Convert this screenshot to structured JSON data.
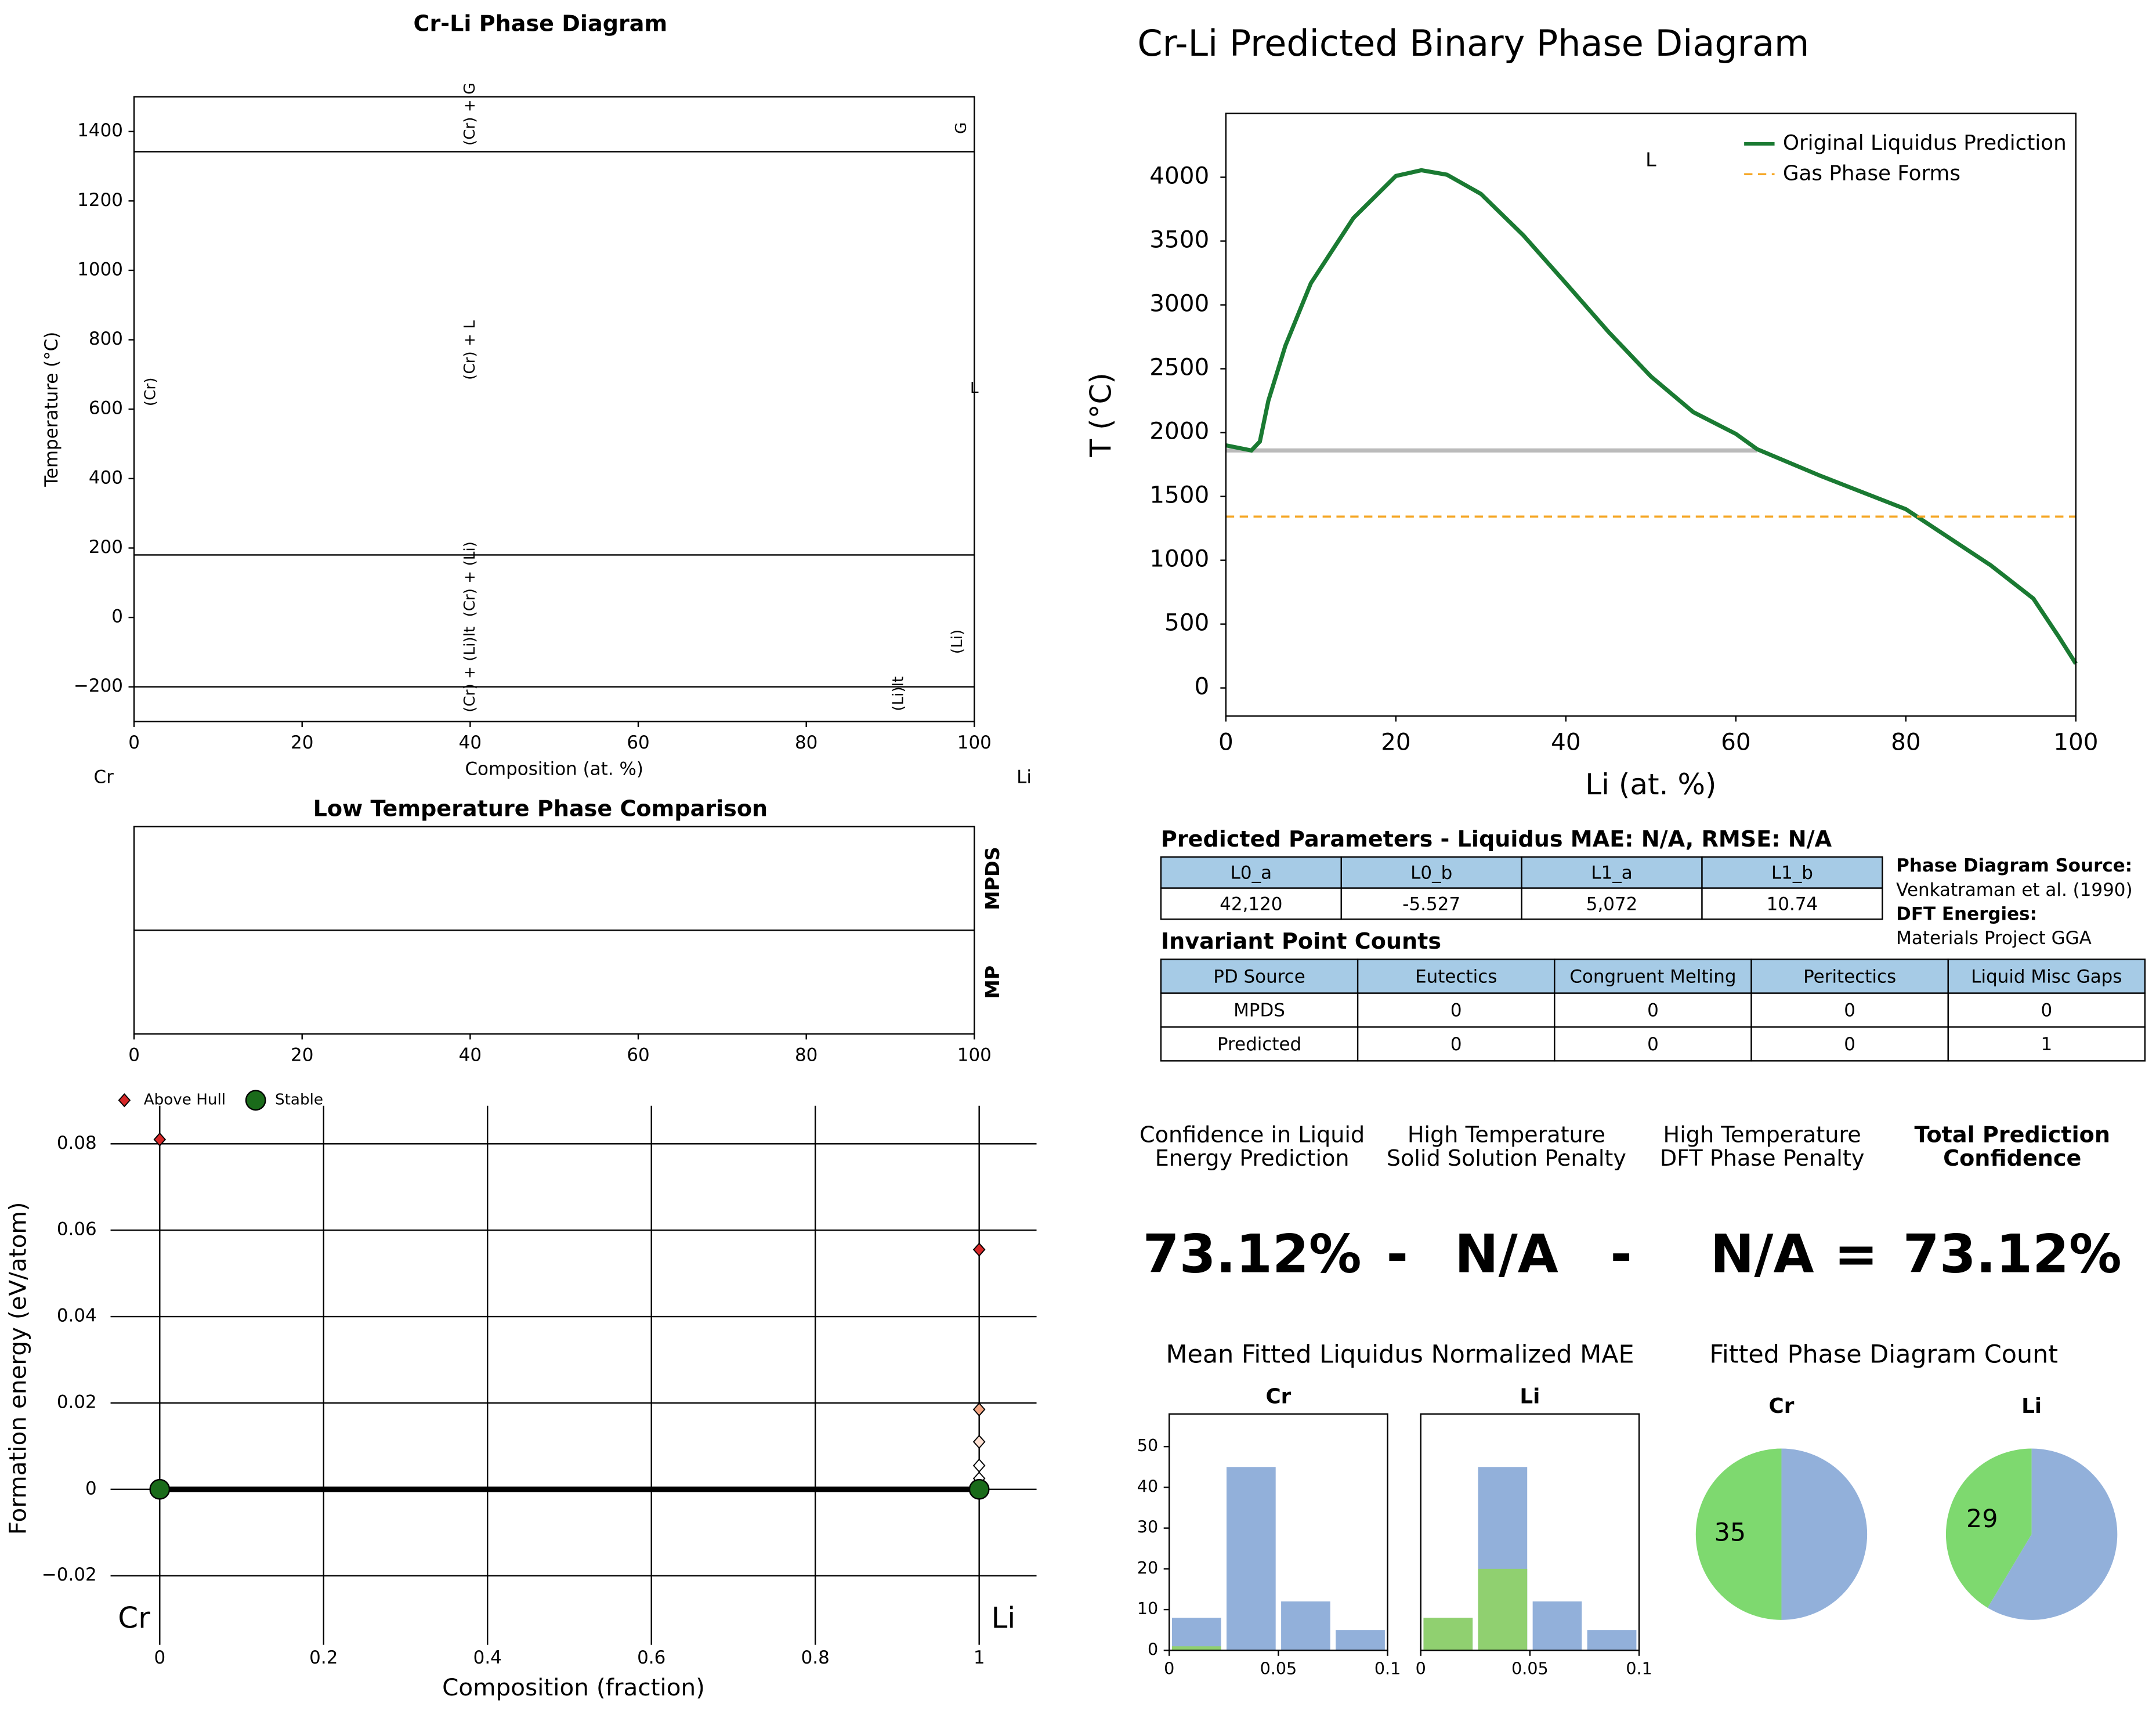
{
  "chart_data": [
    {
      "type": "phase",
      "title": "Cr-Li Phase Diagram",
      "xlabel": "Composition (at. %)",
      "ylabel": "Temperature (°C)",
      "xlim": [
        0,
        100
      ],
      "ylim": [
        -300,
        1500
      ],
      "xticks": [
        0,
        20,
        40,
        60,
        80,
        100
      ],
      "yticks": [
        {
          "value": -200,
          "label": "−200"
        },
        0,
        200,
        400,
        600,
        800,
        1000,
        1200,
        1400
      ],
      "boundaries": [
        1342,
        180,
        -200
      ],
      "regions": [
        {
          "text": "(Cr) + G",
          "x": 40,
          "y": 1450,
          "rotation": 90
        },
        {
          "text": "G",
          "x": 98.5,
          "y": 1410,
          "rotation": 90
        },
        {
          "text": "(Cr) + L",
          "x": 40,
          "y": 770,
          "rotation": 90
        },
        {
          "text": "(Cr)",
          "x": 2,
          "y": 650,
          "rotation": 90
        },
        {
          "text": "L",
          "x": 100,
          "y": 660,
          "rotation": 0
        },
        {
          "text": "(Cr) + (Li)",
          "x": 40,
          "y": 110,
          "rotation": 90
        },
        {
          "text": "(Li)",
          "x": 98,
          "y": -70,
          "rotation": 90
        },
        {
          "text": "(Cr) + (Li)lt",
          "x": 40,
          "y": -150,
          "rotation": 90
        },
        {
          "text": "(Li)lt",
          "x": 91,
          "y": -220,
          "rotation": 90
        }
      ],
      "end_labels": [
        "Cr",
        "Li"
      ]
    },
    {
      "type": "band",
      "title": "Low Temperature Phase Comparison",
      "rows": [
        "MPDS",
        "MP"
      ],
      "xlim": [
        0,
        100
      ],
      "xticks": [
        0,
        20,
        40,
        60,
        80,
        100
      ]
    },
    {
      "type": "scatter",
      "xlabel": "Composition (fraction)",
      "ylabel": "Formation energy (eV/atom)",
      "xlim": [
        -0.06,
        1.07
      ],
      "ylim": [
        -0.036,
        0.092
      ],
      "xticks": [
        0,
        0.2,
        0.4,
        0.6,
        0.8,
        1
      ],
      "yticks": [
        {
          "value": -0.02,
          "label": "−0.02"
        },
        0,
        0.02,
        0.04,
        0.06,
        0.08
      ],
      "grid": true,
      "legend": "upper left",
      "series": [
        {
          "name": "Above Hull",
          "color": "#d62728",
          "marker": "diamond",
          "x": [
            0,
            1,
            1,
            1,
            1,
            1
          ],
          "values": [
            0.081,
            0.0555,
            0.0185,
            0.011,
            0.0055,
            0.0025
          ],
          "colors": [
            "#d62728",
            "#d62728",
            "#f4a582",
            "#fde0d2",
            "#ffffff",
            "#ffffff"
          ]
        },
        {
          "name": "Stable",
          "color": "#1a6b1a",
          "marker": "circle",
          "x": [
            0,
            1
          ],
          "values": [
            0,
            0
          ]
        }
      ],
      "end_labels": [
        "Cr",
        "Li"
      ]
    },
    {
      "type": "line",
      "title": "Cr-Li Predicted Binary Phase Diagram",
      "xlabel": "Li (at. %)",
      "ylabel": "T (°C)",
      "xlim": [
        0,
        100
      ],
      "ylim": [
        -220,
        4500
      ],
      "xticks": [
        0,
        20,
        40,
        60,
        80,
        100
      ],
      "yticks": [
        0,
        500,
        1000,
        1500,
        2000,
        2500,
        3000,
        3500,
        4000
      ],
      "legend": "upper right",
      "series": [
        {
          "name": "Original Liquidus Prediction",
          "color": "#1a7a32",
          "x": [
            0,
            3,
            4,
            5,
            7,
            10,
            15,
            20,
            23,
            26,
            30,
            35,
            40,
            45,
            50,
            55,
            60,
            62.5,
            70,
            80,
            90,
            95,
            98,
            100
          ],
          "values": [
            1900,
            1860,
            1930,
            2250,
            2680,
            3170,
            3680,
            4010,
            4055,
            4020,
            3870,
            3545,
            3170,
            2790,
            2440,
            2160,
            1990,
            1870,
            1660,
            1400,
            960,
            700,
            400,
            190
          ]
        },
        {
          "name": "Gas Phase Forms",
          "color": "#f5a623",
          "dash": true,
          "x": [
            0,
            100
          ],
          "values": [
            1342,
            1342
          ]
        }
      ],
      "invariant_line": {
        "color": "#bbbbbb",
        "x": [
          0,
          62.5
        ],
        "values": [
          1860,
          1860
        ]
      },
      "annotations": [
        {
          "text": "L",
          "x": 50,
          "y": 4130
        }
      ]
    },
    {
      "type": "histogram",
      "title": "Cr",
      "bins": [
        0,
        0.025,
        0.05,
        0.075,
        0.1
      ],
      "xlim": [
        0,
        0.1
      ],
      "ylim": [
        0,
        58
      ],
      "xticks": [
        0,
        0.05,
        0.1
      ],
      "yticks": [
        0,
        10,
        20,
        30,
        40,
        50
      ],
      "series": [
        {
          "color": "#92b0da",
          "values": [
            8,
            45,
            12,
            5
          ]
        },
        {
          "color": "#90d070",
          "values": [
            1,
            0,
            0,
            0
          ]
        }
      ]
    },
    {
      "type": "histogram",
      "title": "Li",
      "bins": [
        0,
        0.025,
        0.05,
        0.075,
        0.1
      ],
      "xlim": [
        0,
        0.1
      ],
      "ylim": [
        0,
        58
      ],
      "xticks": [
        0,
        0.05,
        0.1
      ],
      "series": [
        {
          "color": "#92b0da",
          "values": [
            8,
            45,
            12,
            5
          ]
        },
        {
          "color": "#90d070",
          "values": [
            8,
            20,
            0,
            0
          ]
        }
      ]
    },
    {
      "type": "pie",
      "title": "Cr",
      "values": [
        35,
        35
      ],
      "colors": [
        "#7ed96f",
        "#92b0da"
      ],
      "show_labels": [
        true,
        false
      ]
    },
    {
      "type": "pie",
      "title": "Li",
      "values": [
        29,
        41
      ],
      "colors": [
        "#7ed96f",
        "#92b0da"
      ],
      "show_labels": [
        true,
        false
      ]
    }
  ],
  "group_titles": [
    "Mean Fitted Liquidus Normalized MAE",
    "Fitted Phase Diagram Count"
  ],
  "parameters": {
    "title": "Predicted Parameters - Liquidus MAE: N/A, RMSE: N/A",
    "header": [
      "L0_a",
      "L0_b",
      "L1_a",
      "L1_b"
    ],
    "rows": [
      [
        "42,120",
        "-5.527",
        "5,072",
        "10.74"
      ]
    ]
  },
  "sources": [
    "Phase Diagram Source:",
    "Venkatraman et al. (1990)",
    "DFT Energies:",
    "Materials Project GGA"
  ],
  "invariants": {
    "title": "Invariant Point Counts",
    "header": [
      "PD Source",
      "Eutectics",
      "Congruent Melting",
      "Peritectics",
      "Liquid Misc Gaps"
    ],
    "rows": [
      [
        "MPDS",
        "0",
        "0",
        "0",
        "0"
      ],
      [
        "Predicted",
        "0",
        "0",
        "0",
        "1"
      ]
    ]
  },
  "confidence": {
    "headers": [
      [
        "Confidence in Liquid",
        "Energy Prediction"
      ],
      [
        "High Temperature",
        "Solid Solution Penalty"
      ],
      [
        "High Temperature",
        "DFT Phase Penalty"
      ],
      [
        "Total Prediction",
        "Confidence"
      ]
    ],
    "values": [
      "73.12%",
      "N/A",
      "N/A",
      "73.12%"
    ],
    "operators": [
      "-",
      "-",
      "="
    ]
  }
}
